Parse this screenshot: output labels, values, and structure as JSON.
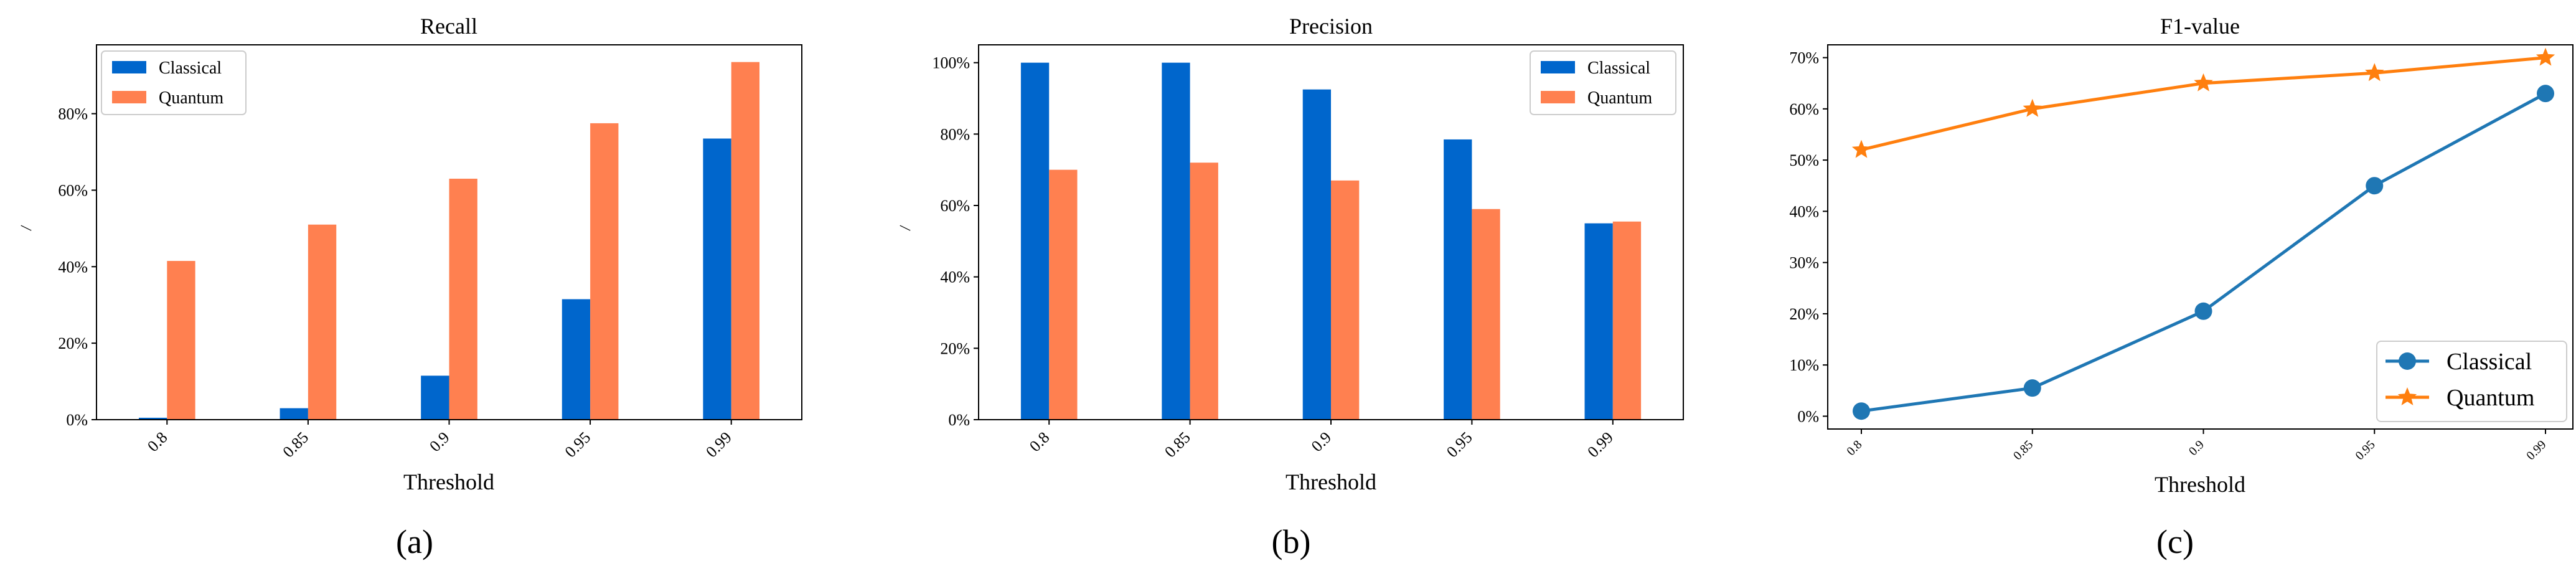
{
  "chart_data": [
    {
      "id": "a",
      "type": "bar",
      "title": "Recall",
      "xlabel": "Threshold",
      "ylabel": "\\",
      "caption": "(a)",
      "categories": [
        "0.8",
        "0.85",
        "0.9",
        "0.95",
        "0.99"
      ],
      "series": [
        {
          "name": "Classical",
          "values": [
            0.5,
            3,
            11.5,
            31.5,
            73.5
          ]
        },
        {
          "name": "Quantum",
          "values": [
            41.5,
            51,
            63,
            77.5,
            93.5
          ]
        }
      ],
      "ylim": [
        0,
        98
      ],
      "yticks": [
        0,
        20,
        40,
        60,
        80
      ],
      "ytick_labels": [
        "0%",
        "20%",
        "40%",
        "60%",
        "80%"
      ],
      "legend_position": "top-left"
    },
    {
      "id": "b",
      "type": "bar",
      "title": "Precision",
      "xlabel": "Threshold",
      "ylabel": "\\",
      "caption": "(b)",
      "categories": [
        "0.8",
        "0.85",
        "0.9",
        "0.95",
        "0.99"
      ],
      "series": [
        {
          "name": "Classical",
          "values": [
            100,
            100,
            92.5,
            78.5,
            55
          ]
        },
        {
          "name": "Quantum",
          "values": [
            70,
            72,
            67,
            59,
            55.5
          ]
        }
      ],
      "ylim": [
        0,
        105
      ],
      "yticks": [
        0,
        20,
        40,
        60,
        80,
        100
      ],
      "ytick_labels": [
        "0%",
        "20%",
        "40%",
        "60%",
        "80%",
        "100%"
      ],
      "legend_position": "top-right"
    },
    {
      "id": "c",
      "type": "line",
      "title": "F1-value",
      "xlabel": "Threshold",
      "caption": "(c)",
      "categories": [
        "0.8",
        "0.85",
        "0.9",
        "0.95",
        "0.99"
      ],
      "series": [
        {
          "name": "Classical",
          "marker": "circle",
          "values": [
            1,
            5.5,
            20.5,
            45,
            63
          ]
        },
        {
          "name": "Quantum",
          "marker": "star",
          "values": [
            52,
            60,
            65,
            67,
            70
          ]
        }
      ],
      "ylim": [
        -2.5,
        72.5
      ],
      "yticks": [
        0,
        10,
        20,
        30,
        40,
        50,
        60,
        70
      ],
      "ytick_labels": [
        "0%",
        "10%",
        "20%",
        "30%",
        "40%",
        "50%",
        "60%",
        "70%"
      ],
      "legend_position": "bottom-right"
    }
  ],
  "colors": {
    "bar_classical": "#0066cc",
    "bar_quantum": "#ff8050",
    "line_classical": "#1f77b4",
    "line_quantum": "#ff7f0e"
  }
}
